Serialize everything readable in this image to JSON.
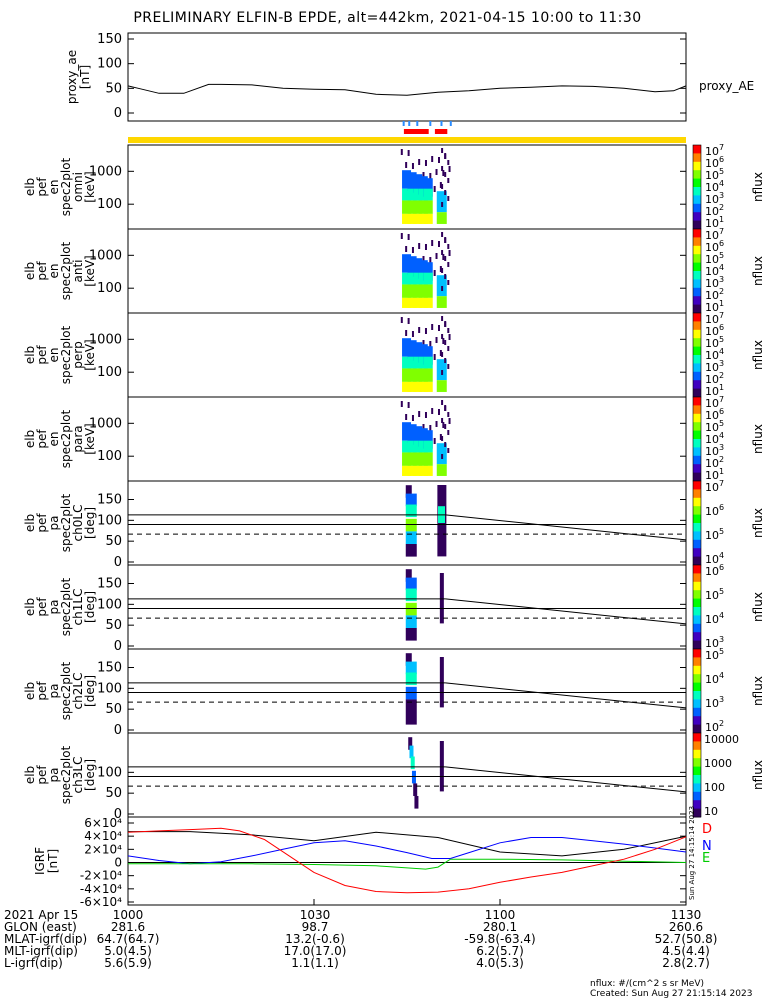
{
  "title": "PRELIMINARY ELFIN-B EPDE, alt=442km, 2021-04-15 10:00 to 11:30",
  "chart_data": {
    "type": "line",
    "x_range": [
      "10:00",
      "11:30"
    ],
    "panels": [
      {
        "id": "proxy_ae",
        "ylabel": "proxy_ae\n[nT]",
        "series_label": "proxy_AE",
        "ylim": [
          0,
          150
        ],
        "yticks": [
          "0",
          "50",
          "100",
          "150"
        ],
        "series": [
          {
            "name": "proxy_AE",
            "color": "#000000",
            "x": [
              0,
              2,
              5,
              9,
              13,
              15,
              20,
              25,
              30,
              35,
              40,
              45,
              50,
              55,
              60,
              65,
              70,
              75,
              80,
              85,
              88,
              90
            ],
            "values": [
              55,
              49,
              40,
              40,
              58,
              58,
              57,
              50,
              48,
              47,
              38,
              36,
              42,
              45,
              50,
              52,
              55,
              54,
              50,
              43,
              45,
              55
            ]
          }
        ]
      },
      {
        "id": "spec_omni",
        "ylabel": "elb\npef\nen\nspec2plot\nomni\n[keV]",
        "yticks": [
          "100",
          "1000"
        ],
        "zlabel": "nflux",
        "ztick_powers": [
          "1",
          "2",
          "3",
          "4",
          "5",
          "6",
          "7"
        ],
        "zexp": true
      },
      {
        "id": "spec_anti",
        "ylabel": "elb\npef\nen\nspec2plot\nanti\n[keV]",
        "yticks": [
          "100",
          "1000"
        ],
        "zlabel": "nflux",
        "ztick_powers": [
          "1",
          "2",
          "3",
          "4",
          "5",
          "6",
          "7"
        ],
        "zexp": true
      },
      {
        "id": "spec_perp",
        "ylabel": "elb\npef\nen\nspec2plot\nperp\n[keV]",
        "yticks": [
          "100",
          "1000"
        ],
        "zlabel": "nflux",
        "ztick_powers": [
          "1",
          "2",
          "3",
          "4",
          "5",
          "6",
          "7"
        ],
        "zexp": true
      },
      {
        "id": "spec_para",
        "ylabel": "elb\npef\nen\nspec2plot\npara\n[keV]",
        "yticks": [
          "100",
          "1000"
        ],
        "zlabel": "nflux",
        "ztick_powers": [
          "1",
          "2",
          "3",
          "4",
          "5",
          "6",
          "7"
        ],
        "zexp": true
      },
      {
        "id": "pa_ch0",
        "ylabel": "elb\npef\npa\nspec2plot\nch0LC\n[deg]",
        "yticks": [
          "0",
          "50",
          "100",
          "150"
        ],
        "zlabel": "nflux",
        "ztick_powers": [
          "4",
          "5",
          "6",
          "7"
        ],
        "zexp": true
      },
      {
        "id": "pa_ch1",
        "ylabel": "elb\npef\npa\nspec2plot\nch1LC\n[deg]",
        "yticks": [
          "0",
          "50",
          "100",
          "150"
        ],
        "zlabel": "nflux",
        "ztick_powers": [
          "3",
          "4",
          "5",
          "6"
        ],
        "zexp": true
      },
      {
        "id": "pa_ch2",
        "ylabel": "elb\npef\npa\nspec2plot\nch2LC\n[deg]",
        "yticks": [
          "0",
          "50",
          "100",
          "150"
        ],
        "zlabel": "nflux",
        "ztick_powers": [
          "2",
          "3",
          "4",
          "5"
        ],
        "zexp": true
      },
      {
        "id": "pa_ch3",
        "ylabel": "elb\npef\npa\nspec2plot\nch3LC\n[deg]",
        "yticks": [
          "0",
          "50",
          "100"
        ],
        "zlabel": "nflux",
        "ztick_labels": [
          "10",
          "100",
          "1000",
          "10000"
        ],
        "zexp": false
      },
      {
        "id": "igrf",
        "ylabel": "IGRF\n[nT]",
        "yticks": [
          "-6×10⁴",
          "-4×10⁴",
          "-2×10⁴",
          "0",
          "2×10⁴",
          "4×10⁴",
          "6×10⁴"
        ],
        "ylim": [
          -60000,
          60000
        ],
        "series": [
          {
            "name": "D",
            "color": "#000000",
            "x": [
              0,
              10,
              20,
              30,
              40,
              50,
              60,
              70,
              80,
              90
            ],
            "values": [
              47000,
              47000,
              42000,
              33000,
              46000,
              38000,
              16000,
              10000,
              20000,
              40000
            ]
          },
          {
            "name": "N",
            "color": "#0000ff",
            "x": [
              0,
              5,
              10,
              15,
              20,
              25,
              30,
              35,
              40,
              45,
              49,
              52,
              55,
              60,
              65,
              70,
              75,
              80,
              85,
              90
            ],
            "values": [
              10000,
              3000,
              -2000,
              1000,
              10000,
              20000,
              30000,
              33000,
              25000,
              15000,
              6000,
              6000,
              15000,
              30000,
              38000,
              38000,
              33000,
              28000,
              22000,
              16000
            ]
          },
          {
            "name": "E",
            "color": "#00cc00",
            "x": [
              0,
              10,
              20,
              30,
              40,
              48,
              50,
              52,
              60,
              70,
              80,
              90
            ],
            "values": [
              -2000,
              -2000,
              -2000,
              -3000,
              -5000,
              -10000,
              -7000,
              5000,
              5000,
              4000,
              2000,
              0
            ]
          },
          {
            "name": "red",
            "color": "#ff0000",
            "x": [
              0,
              5,
              10,
              15,
              18,
              22,
              26,
              30,
              35,
              40,
              45,
              50,
              55,
              60,
              65,
              70,
              75,
              80,
              85,
              90
            ],
            "values": [
              46000,
              48000,
              50000,
              52000,
              48000,
              35000,
              10000,
              -15000,
              -35000,
              -44000,
              -46000,
              -45000,
              -40000,
              -30000,
              -22000,
              -15000,
              -5000,
              5000,
              20000,
              39000
            ]
          }
        ]
      }
    ],
    "xticks": [
      "1000",
      "1030",
      "1100",
      "1130"
    ]
  },
  "footer": {
    "rows": [
      {
        "label": "2021 Apr 15",
        "values": [
          "1000",
          "1030",
          "1100",
          "1130"
        ]
      },
      {
        "label": "GLON (east)",
        "values": [
          "281.6",
          "98.7",
          "280.1",
          "260.6"
        ]
      },
      {
        "label": "MLAT-igrf(dip)",
        "values": [
          "64.7(64.7)",
          "13.2(-0.6)",
          "-59.8(-63.4)",
          "52.7(50.8)"
        ]
      },
      {
        "label": "MLT-igrf(dip)",
        "values": [
          "5.0(4.5)",
          "17.0(17.0)",
          "6.2(5.7)",
          "4.5(4.4)"
        ]
      },
      {
        "label": "L-igrf(dip)",
        "values": [
          "5.6(5.9)",
          "1.1(1.1)",
          "4.0(5.3)",
          "2.8(2.7)"
        ]
      }
    ],
    "units_note": "nflux: #/(cm^2 s sr MeV)",
    "created": "Created: Sun Aug 27 21:15:14 2023",
    "side_stamp": "Sun Aug 27 14:15:14 2023"
  }
}
